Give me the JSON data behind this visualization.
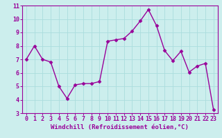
{
  "x": [
    0,
    1,
    2,
    3,
    4,
    5,
    6,
    7,
    8,
    9,
    10,
    11,
    12,
    13,
    14,
    15,
    16,
    17,
    18,
    19,
    20,
    21,
    22,
    23
  ],
  "y": [
    7.0,
    8.0,
    7.0,
    6.8,
    5.0,
    4.1,
    5.1,
    5.2,
    5.2,
    5.35,
    8.35,
    8.45,
    8.55,
    9.1,
    9.85,
    10.7,
    9.5,
    7.65,
    6.9,
    7.6,
    6.05,
    6.5,
    6.7,
    3.25
  ],
  "line_color": "#990099",
  "marker": "D",
  "marker_size": 2.5,
  "bg_color": "#cceeed",
  "grid_color": "#aadddd",
  "xlabel": "Windchill (Refroidissement éolien,°C)",
  "xlabel_color": "#990099",
  "tick_color": "#990099",
  "ylim": [
    3,
    11
  ],
  "xlim": [
    -0.5,
    23.5
  ],
  "yticks": [
    3,
    4,
    5,
    6,
    7,
    8,
    9,
    10,
    11
  ],
  "xticks": [
    0,
    1,
    2,
    3,
    4,
    5,
    6,
    7,
    8,
    9,
    10,
    11,
    12,
    13,
    14,
    15,
    16,
    17,
    18,
    19,
    20,
    21,
    22,
    23
  ],
  "spine_color": "#990099",
  "label_fontsize": 6.5,
  "tick_fontsize": 6,
  "linewidth": 1.0
}
